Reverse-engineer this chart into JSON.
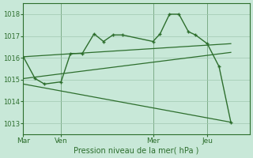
{
  "bg_color": "#c8e8d8",
  "grid_color": "#a0c8b0",
  "line_color": "#2d6e2d",
  "axis_color": "#2d6e2d",
  "xlabel": "Pression niveau de la mer( hPa )",
  "ylim": [
    1012.5,
    1018.5
  ],
  "yticks": [
    1013,
    1014,
    1015,
    1016,
    1017,
    1018
  ],
  "xtick_labels": [
    "Mar",
    "Ven",
    "Mer",
    "Jeu"
  ],
  "xtick_positions": [
    0,
    16,
    55,
    78
  ],
  "vline_positions": [
    0,
    16,
    55,
    78
  ],
  "xlim": [
    0,
    96
  ],
  "main_x": [
    0,
    5,
    9,
    16,
    20,
    25,
    30,
    34,
    38,
    42,
    55,
    58,
    62,
    66,
    70,
    73,
    78,
    83,
    88
  ],
  "main_y": [
    1016.05,
    1015.05,
    1014.8,
    1014.9,
    1016.2,
    1016.2,
    1017.1,
    1016.75,
    1017.05,
    1017.05,
    1016.75,
    1017.1,
    1018.0,
    1018.0,
    1017.2,
    1017.05,
    1016.65,
    1015.6,
    1013.05
  ],
  "line1_x": [
    0,
    88
  ],
  "line1_y": [
    1016.05,
    1016.65
  ],
  "line2_x": [
    0,
    88
  ],
  "line2_y": [
    1015.05,
    1016.25
  ],
  "line3_x": [
    0,
    88
  ],
  "line3_y": [
    1014.8,
    1013.05
  ],
  "figsize": [
    3.2,
    2.0
  ],
  "dpi": 100
}
